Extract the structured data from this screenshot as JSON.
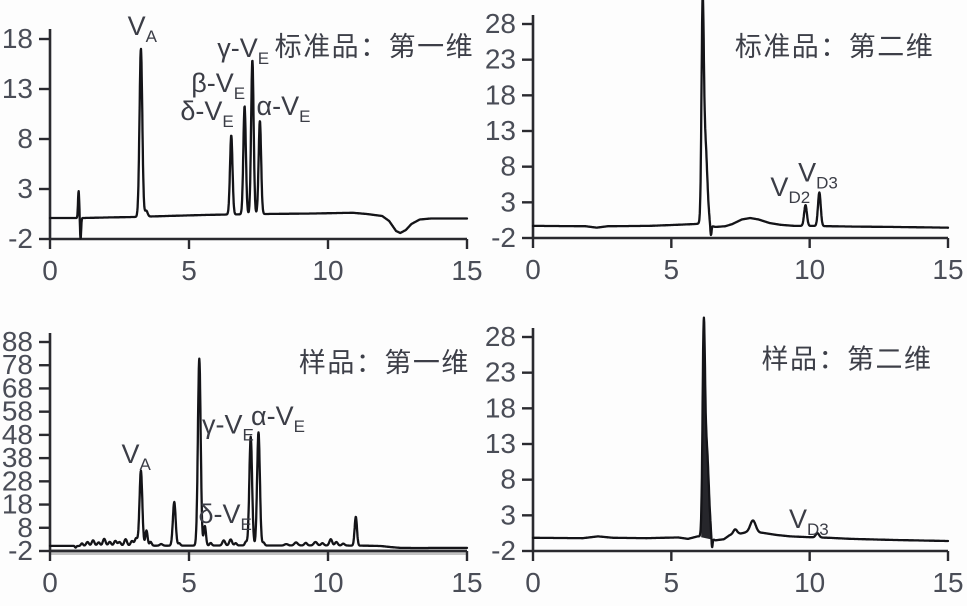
{
  "figure": {
    "description": "2D-LC chromatograms of vitamin standards and sample, first and second dimension",
    "panel_count": 4
  },
  "colors": {
    "background": "#fdfdfd",
    "line": "#141418",
    "axis": "#2a2a2f",
    "tick_text": "#4a4d57",
    "label_text": "#3b3d46",
    "title_text": "#3d3f48",
    "gray_band": "#c2c2c2",
    "peak_fill": "#26262b"
  },
  "chart_data": [
    {
      "id": "standard-dim1",
      "type": "line",
      "title": "标准品：第一维",
      "title_pos": {
        "x": 11.67,
        "y": 16.3
      },
      "xlim": [
        0,
        15
      ],
      "ylim": [
        -2,
        18
      ],
      "xticks": [
        0,
        5,
        10,
        15
      ],
      "yticks": [
        18,
        13,
        8,
        3,
        -2
      ],
      "grid": false,
      "baseline": [
        [
          0,
          0.1
        ],
        [
          0.9,
          0.1
        ],
        [
          1.2,
          0.1
        ],
        [
          2,
          0.15
        ],
        [
          3,
          0.2
        ],
        [
          4.2,
          0.3
        ],
        [
          5.5,
          0.4
        ],
        [
          6.4,
          0.45
        ],
        [
          7.7,
          0.5
        ],
        [
          9.5,
          0.55
        ],
        [
          10.4,
          0.6
        ],
        [
          10.9,
          0.62
        ],
        [
          11.4,
          0.5
        ],
        [
          11.95,
          0.3
        ],
        [
          12.2,
          -0.2
        ],
        [
          12.45,
          -1.2
        ],
        [
          12.6,
          -1.4
        ],
        [
          12.8,
          -1.1
        ],
        [
          13.0,
          -0.5
        ],
        [
          13.3,
          -0.05
        ],
        [
          13.7,
          0.05
        ],
        [
          15,
          0.05
        ]
      ],
      "peaks": [
        {
          "name": "solvent-spike-up",
          "x": 1.03,
          "h": 2.7,
          "w": 0.022
        },
        {
          "name": "solvent-spike-down",
          "x": 1.1,
          "h": -2.1,
          "w": 0.02
        },
        {
          "name": "VA",
          "x": 3.27,
          "h": 16.8,
          "w": 0.05
        },
        {
          "name": "VA-tail",
          "x": 3.46,
          "h": 0.6,
          "w": 0.05
        },
        {
          "name": "delta-VE",
          "x": 6.52,
          "h": 7.9,
          "w": 0.045
        },
        {
          "name": "beta-VE",
          "x": 7.0,
          "h": 10.8,
          "w": 0.045
        },
        {
          "name": "gamma-VE",
          "x": 7.28,
          "h": 15.4,
          "w": 0.045
        },
        {
          "name": "alpha-VE",
          "x": 7.55,
          "h": 9.3,
          "w": 0.045
        }
      ],
      "labels": [
        {
          "name": "VA",
          "parts": [
            [
              "V",
              false
            ],
            [
              "A",
              true
            ]
          ],
          "x": 3.32,
          "y": 18.4
        },
        {
          "name": "gamma-VE",
          "parts": [
            [
              "γ-V",
              false
            ],
            [
              "E",
              true
            ]
          ],
          "x": 6.95,
          "y": 16.2
        },
        {
          "name": "beta-VE",
          "parts": [
            [
              "β-V",
              false
            ],
            [
              "E",
              true
            ]
          ],
          "x": 6.05,
          "y": 12.7
        },
        {
          "name": "delta-VE",
          "parts": [
            [
              "δ-V",
              false
            ],
            [
              "E",
              true
            ]
          ],
          "x": 5.65,
          "y": 9.9
        },
        {
          "name": "alpha-VE",
          "parts": [
            [
              "α-V",
              false
            ],
            [
              "E",
              true
            ]
          ],
          "x": 8.4,
          "y": 10.4
        }
      ]
    },
    {
      "id": "standard-dim2",
      "type": "line",
      "title": "标准品：第二维",
      "title_pos": {
        "x": 10.9,
        "y": 23.5
      },
      "xlim": [
        0,
        15
      ],
      "ylim": [
        -2,
        28
      ],
      "xticks": [
        0,
        5,
        10,
        15
      ],
      "yticks": [
        28,
        23,
        18,
        13,
        8,
        3,
        -2
      ],
      "grid": false,
      "baseline": [
        [
          0,
          -0.3
        ],
        [
          1.9,
          -0.35
        ],
        [
          2.3,
          -0.55
        ],
        [
          2.7,
          -0.35
        ],
        [
          4.2,
          -0.3
        ],
        [
          5.2,
          -0.15
        ],
        [
          5.8,
          -0.05
        ],
        [
          6.05,
          0
        ],
        [
          6.6,
          -0.45
        ],
        [
          6.95,
          -0.35
        ],
        [
          7.2,
          -0.05
        ],
        [
          7.55,
          0.6
        ],
        [
          7.85,
          0.8
        ],
        [
          8.15,
          0.6
        ],
        [
          8.55,
          0.1
        ],
        [
          8.95,
          -0.15
        ],
        [
          9.45,
          -0.3
        ],
        [
          10.05,
          -0.3
        ],
        [
          10.75,
          -0.35
        ],
        [
          11.6,
          -0.4
        ],
        [
          13,
          -0.45
        ],
        [
          15,
          -0.55
        ]
      ],
      "peaks": [
        {
          "name": "injection-main",
          "x": 6.13,
          "h": 26.3,
          "w": 0.04
        },
        {
          "name": "injection-shoulder",
          "x": 6.22,
          "h": 12,
          "w": 0.075
        },
        {
          "name": "system-dip",
          "x": 6.43,
          "h": -1.5,
          "w": 0.022
        },
        {
          "name": "VD2",
          "x": 9.85,
          "h": 2.9,
          "w": 0.05
        },
        {
          "name": "VD3",
          "x": 10.35,
          "h": 4.7,
          "w": 0.05
        }
      ],
      "labels": [
        {
          "name": "VD2",
          "parts": [
            [
              "V",
              false
            ],
            [
              "D2",
              true
            ]
          ],
          "x": 9.3,
          "y": 3.9
        },
        {
          "name": "VD3",
          "parts": [
            [
              "V",
              false
            ],
            [
              "D3",
              true
            ]
          ],
          "x": 10.3,
          "y": 5.9
        }
      ]
    },
    {
      "id": "sample-dim1",
      "type": "line",
      "title": "样品：第一维",
      "title_pos": {
        "x": 12.03,
        "y": 75
      },
      "xlim": [
        0,
        15
      ],
      "ylim": [
        -2,
        88
      ],
      "xticks": [
        0,
        5,
        10,
        15
      ],
      "yticks": [
        88,
        78,
        68,
        58,
        48,
        38,
        28,
        18,
        8,
        -2
      ],
      "grid": false,
      "underband": true,
      "baseline": [
        [
          0,
          0.2
        ],
        [
          0.85,
          0.2
        ],
        [
          1.0,
          0.15
        ],
        [
          3.2,
          0.3
        ],
        [
          4.4,
          0.3
        ],
        [
          5.3,
          0.35
        ],
        [
          6.0,
          0.35
        ],
        [
          7.0,
          0.4
        ],
        [
          8.0,
          0.35
        ],
        [
          9.0,
          0.4
        ],
        [
          10.7,
          0.35
        ],
        [
          11.3,
          0.3
        ],
        [
          11.9,
          0.15
        ],
        [
          12.25,
          -0.3
        ],
        [
          12.6,
          -0.65
        ],
        [
          13.1,
          -0.7
        ],
        [
          15,
          -0.65
        ]
      ],
      "peaks": [
        {
          "name": "noise-dip",
          "x": 0.92,
          "h": -0.7,
          "w": 0.025
        },
        {
          "x": 1.15,
          "h": 1.1,
          "w": 0.04
        },
        {
          "x": 1.35,
          "h": 1.7,
          "w": 0.05
        },
        {
          "x": 1.55,
          "h": 2.4,
          "w": 0.05
        },
        {
          "x": 1.75,
          "h": 1.5,
          "w": 0.05
        },
        {
          "x": 1.95,
          "h": 3.0,
          "w": 0.05
        },
        {
          "x": 2.15,
          "h": 1.7,
          "w": 0.05
        },
        {
          "x": 2.35,
          "h": 2.1,
          "w": 0.05
        },
        {
          "x": 2.5,
          "h": 1.6,
          "w": 0.05
        },
        {
          "x": 2.72,
          "h": 2.8,
          "w": 0.05
        },
        {
          "x": 2.95,
          "h": 2.0,
          "w": 0.05
        },
        {
          "x": 3.1,
          "h": 3.2,
          "w": 0.05
        },
        {
          "name": "VA",
          "x": 3.27,
          "h": 32.3,
          "w": 0.05
        },
        {
          "x": 3.47,
          "h": 6.5,
          "w": 0.04
        },
        {
          "x": 3.62,
          "h": 1.6,
          "w": 0.04
        },
        {
          "x": 4.0,
          "h": 0.7,
          "w": 0.05
        },
        {
          "name": "unknown-1",
          "x": 4.47,
          "h": 18.8,
          "w": 0.05
        },
        {
          "x": 4.65,
          "h": 1.0,
          "w": 0.04
        },
        {
          "name": "unknown-major",
          "x": 5.37,
          "h": 80.5,
          "w": 0.05
        },
        {
          "name": "delta-VE",
          "x": 5.57,
          "h": 8.4,
          "w": 0.04
        },
        {
          "x": 5.78,
          "h": 1.1,
          "w": 0.04
        },
        {
          "x": 6.25,
          "h": 2.2,
          "w": 0.05
        },
        {
          "x": 6.5,
          "h": 2.6,
          "w": 0.05
        },
        {
          "x": 6.68,
          "h": 1.0,
          "w": 0.04
        },
        {
          "x": 7.05,
          "h": 1.6,
          "w": 0.04
        },
        {
          "name": "gamma-VE",
          "x": 7.22,
          "h": 46.8,
          "w": 0.05
        },
        {
          "name": "alpha-VE",
          "x": 7.5,
          "h": 48.7,
          "w": 0.05
        },
        {
          "x": 7.68,
          "h": 1.3,
          "w": 0.04
        },
        {
          "x": 8.5,
          "h": 0.6,
          "w": 0.06
        },
        {
          "x": 8.85,
          "h": 1.3,
          "w": 0.06
        },
        {
          "x": 9.2,
          "h": 1.1,
          "w": 0.05
        },
        {
          "x": 9.55,
          "h": 1.5,
          "w": 0.06
        },
        {
          "x": 9.8,
          "h": 1.0,
          "w": 0.05
        },
        {
          "x": 10.1,
          "h": 2.7,
          "w": 0.05
        },
        {
          "x": 10.3,
          "h": 1.5,
          "w": 0.05
        },
        {
          "x": 10.55,
          "h": 0.8,
          "w": 0.05
        },
        {
          "name": "unknown-2",
          "x": 11.0,
          "h": 12.4,
          "w": 0.042
        }
      ],
      "labels": [
        {
          "name": "VA",
          "parts": [
            [
              "V",
              false
            ],
            [
              "A",
              true
            ]
          ],
          "x": 3.1,
          "y": 36
        },
        {
          "name": "gamma-VE",
          "parts": [
            [
              "γ-V",
              false
            ],
            [
              "E",
              true
            ]
          ],
          "x": 6.4,
          "y": 48.5
        },
        {
          "name": "delta-VE",
          "parts": [
            [
              "δ-V",
              false
            ],
            [
              "E",
              true
            ]
          ],
          "x": 6.3,
          "y": 10.1
        },
        {
          "name": "alpha-VE",
          "parts": [
            [
              "α-V",
              false
            ],
            [
              "E",
              true
            ]
          ],
          "x": 8.2,
          "y": 52.3
        }
      ]
    },
    {
      "id": "sample-dim2",
      "type": "line",
      "title": "样品：第二维",
      "title_pos": {
        "x": 11.35,
        "y": 23.6
      },
      "xlim": [
        0,
        15
      ],
      "ylim": [
        -2,
        28
      ],
      "xticks": [
        0,
        5,
        10,
        15
      ],
      "yticks": [
        28,
        23,
        18,
        13,
        8,
        3,
        -2
      ],
      "grid": false,
      "fill_region": [
        6.08,
        6.42
      ],
      "baseline": [
        [
          0,
          -0.15
        ],
        [
          1.8,
          -0.2
        ],
        [
          2.35,
          0.05
        ],
        [
          2.9,
          -0.15
        ],
        [
          4.1,
          -0.2
        ],
        [
          5.25,
          -0.1
        ],
        [
          5.6,
          -0.3
        ],
        [
          5.95,
          0.05
        ],
        [
          6.6,
          -0.5
        ],
        [
          6.9,
          -0.35
        ],
        [
          7.1,
          0.2
        ],
        [
          7.35,
          0.6
        ],
        [
          7.5,
          0.45
        ],
        [
          7.7,
          0.6
        ],
        [
          8.3,
          0.55
        ],
        [
          8.8,
          0.25
        ],
        [
          9.3,
          0.05
        ],
        [
          9.9,
          -0.05
        ],
        [
          10.7,
          -0.15
        ],
        [
          11.5,
          -0.3
        ],
        [
          13,
          -0.45
        ],
        [
          15,
          -0.6
        ]
      ],
      "peaks": [
        {
          "name": "injection-main",
          "x": 6.17,
          "h": 24.6,
          "w": 0.042
        },
        {
          "name": "injection-shoulder",
          "x": 6.27,
          "h": 13,
          "w": 0.08
        },
        {
          "name": "system-dip",
          "x": 6.47,
          "h": -1.6,
          "w": 0.022
        },
        {
          "x": 7.3,
          "h": 0.5,
          "w": 0.06
        },
        {
          "name": "matrix-peak",
          "x": 7.95,
          "h": 1.7,
          "w": 0.1
        },
        {
          "name": "VD3",
          "x": 10.28,
          "h": 0.6,
          "w": 0.06
        }
      ],
      "labels": [
        {
          "name": "VD3",
          "parts": [
            [
              "V",
              false
            ],
            [
              "D3",
              true
            ]
          ],
          "x": 9.97,
          "y": 1.25
        }
      ]
    }
  ]
}
